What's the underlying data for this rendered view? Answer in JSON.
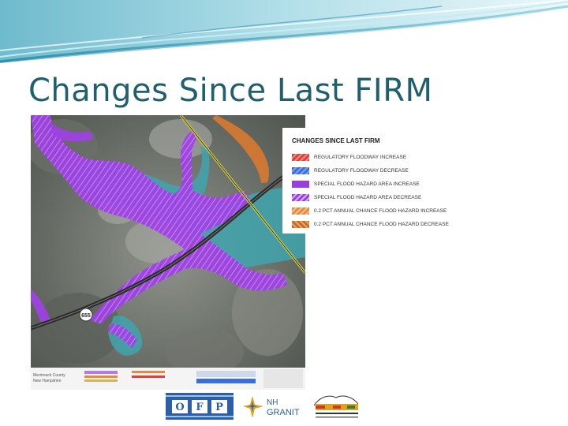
{
  "slide": {
    "title": "Changes Since Last FIRM"
  },
  "legend": {
    "title": "CHANGES SINCE LAST FIRM",
    "items": [
      {
        "label": "REGULATORY FLOODWAY INCREASE",
        "color": "#d9433b"
      },
      {
        "label": "REGULATORY FLOODWAY DECREASE",
        "color": "#3c6fd1"
      },
      {
        "label": "SPECIAL FLOOD HAZARD AREA INCREASE",
        "color": "#9b3ee0"
      },
      {
        "label": "SPECIAL FLOOD HAZARD AREA DECREASE",
        "color": "#b57ae6"
      },
      {
        "label": "0.2 PCT ANNUAL CHANCE FLOOD HAZARD INCREASE",
        "color": "#e88a3c"
      },
      {
        "label": "0.2 PCT ANNUAL CHANCE FLOOD HAZARD DECREASE",
        "color": "#c96a20"
      }
    ]
  },
  "map": {
    "route_shield": "655",
    "county_label": "Merrimack County",
    "state_label": "New Hampshire"
  },
  "logos": {
    "ofp_letters": [
      "O",
      "F",
      "P"
    ],
    "granit_top": "NH",
    "granit_bottom": "GRANIT"
  },
  "colors": {
    "title": "#1f5f6e",
    "sfha_increase": "#9b3ee0",
    "floodway": "#3aa0a8",
    "accent_teal": "#6fc3cf"
  }
}
